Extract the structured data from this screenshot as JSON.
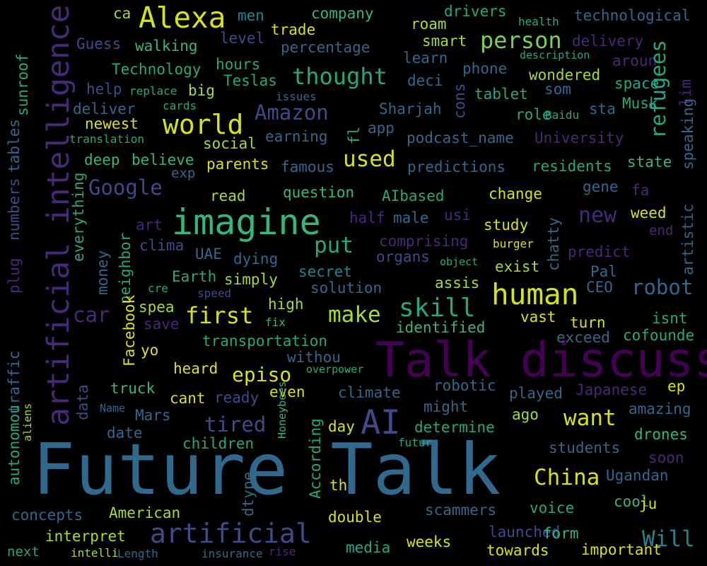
{
  "words": [
    {
      "text": "Future Talk",
      "color": "#31688e"
    },
    {
      "text": "Talk discuss",
      "color": "#440154"
    },
    {
      "text": "artificial intelligence",
      "color": "#482878"
    },
    {
      "text": "imagine",
      "color": "#35b779"
    },
    {
      "text": "Alexa",
      "color": "#d6e21a"
    },
    {
      "text": "AI",
      "color": "#3e4a89"
    },
    {
      "text": "artificial",
      "color": "#3e4a89"
    },
    {
      "text": "human",
      "color": "#d6e21a"
    },
    {
      "text": "world",
      "color": "#d6e21a"
    },
    {
      "text": "skill",
      "color": "#26a784"
    },
    {
      "text": "first",
      "color": "#d6e21a"
    },
    {
      "text": "thought",
      "color": "#26a784"
    },
    {
      "text": "person",
      "color": "#7ad151"
    },
    {
      "text": "Amazon",
      "color": "#3e4a89"
    },
    {
      "text": "Google",
      "color": "#3e4a89"
    },
    {
      "text": "make",
      "color": "#a5db36"
    },
    {
      "text": "put",
      "color": "#26a784"
    },
    {
      "text": "used",
      "color": "#d6e21a"
    },
    {
      "text": "robot",
      "color": "#31688e"
    },
    {
      "text": "car",
      "color": "#482878"
    },
    {
      "text": "episo",
      "color": "#d6e21a"
    },
    {
      "text": "tired",
      "color": "#3e4a89"
    },
    {
      "text": "want",
      "color": "#d6e21a"
    },
    {
      "text": "China",
      "color": "#d6e21a"
    },
    {
      "text": "Will",
      "color": "#26828e"
    },
    {
      "text": "new",
      "color": "#482878"
    },
    {
      "text": "company",
      "color": "#35b779"
    },
    {
      "text": "technological",
      "color": "#31688e"
    },
    {
      "text": "Guess",
      "color": "#3e4a89"
    },
    {
      "text": "walking",
      "color": "#35b779"
    },
    {
      "text": "level",
      "color": "#3e4a89"
    },
    {
      "text": "trade",
      "color": "#d6e21a"
    },
    {
      "text": "percentage",
      "color": "#31688e"
    },
    {
      "text": "roam",
      "color": "#a5db36"
    },
    {
      "text": "smart",
      "color": "#a5db36"
    },
    {
      "text": "delivery",
      "color": "#482878"
    },
    {
      "text": "men",
      "color": "#26828e"
    },
    {
      "text": "ca",
      "color": "#a5db36"
    },
    {
      "text": "drivers",
      "color": "#26a784"
    },
    {
      "text": "health",
      "color": "#26a784"
    },
    {
      "text": "description",
      "color": "#26a784"
    },
    {
      "text": "Technology",
      "color": "#26a784"
    },
    {
      "text": "hours",
      "color": "#26a784"
    },
    {
      "text": "learn",
      "color": "#31688e"
    },
    {
      "text": "phone",
      "color": "#31688e"
    },
    {
      "text": "aroun",
      "color": "#482878"
    },
    {
      "text": "wondered",
      "color": "#a5db36"
    },
    {
      "text": "help",
      "color": "#3e4a89"
    },
    {
      "text": "replace",
      "color": "#26a784"
    },
    {
      "text": "big",
      "color": "#a5db36"
    },
    {
      "text": "Teslas",
      "color": "#26a784"
    },
    {
      "text": "deci",
      "color": "#31688e"
    },
    {
      "text": "tablet",
      "color": "#26a784"
    },
    {
      "text": "som",
      "color": "#31688e"
    },
    {
      "text": "space",
      "color": "#26a784"
    },
    {
      "text": "issues",
      "color": "#31688e"
    },
    {
      "text": "cards",
      "color": "#26a784"
    },
    {
      "text": "deliver",
      "color": "#31688e"
    },
    {
      "text": "Sharjah",
      "color": "#31688e"
    },
    {
      "text": "role",
      "color": "#26a784"
    },
    {
      "text": "Baidu",
      "color": "#26a784"
    },
    {
      "text": "sta",
      "color": "#31688e"
    },
    {
      "text": "Musk",
      "color": "#26a784"
    },
    {
      "text": "newest",
      "color": "#d6e21a"
    },
    {
      "text": "translation",
      "color": "#26a784"
    },
    {
      "text": "earning",
      "color": "#31688e"
    },
    {
      "text": "app",
      "color": "#31688e"
    },
    {
      "text": "podcast_name",
      "color": "#31688e"
    },
    {
      "text": "University",
      "color": "#482878"
    },
    {
      "text": "social",
      "color": "#a5db36"
    },
    {
      "text": "deep",
      "color": "#35b779"
    },
    {
      "text": "believe",
      "color": "#35b779"
    },
    {
      "text": "parents",
      "color": "#d6e21a"
    },
    {
      "text": "famous",
      "color": "#31688e"
    },
    {
      "text": "predictions",
      "color": "#31688e"
    },
    {
      "text": "residents",
      "color": "#26a784"
    },
    {
      "text": "state",
      "color": "#35b779"
    },
    {
      "text": "exp",
      "color": "#31688e"
    },
    {
      "text": "read",
      "color": "#a5db36"
    },
    {
      "text": "question",
      "color": "#35b779"
    },
    {
      "text": "AIbased",
      "color": "#26a784"
    },
    {
      "text": "change",
      "color": "#d6e21a"
    },
    {
      "text": "gene",
      "color": "#31688e"
    },
    {
      "text": "fa",
      "color": "#482878"
    },
    {
      "text": "half",
      "color": "#482878"
    },
    {
      "text": "male",
      "color": "#31688e"
    },
    {
      "text": "usi",
      "color": "#482878"
    },
    {
      "text": "study",
      "color": "#d6e21a"
    },
    {
      "text": "weed",
      "color": "#d6e21a"
    },
    {
      "text": "end",
      "color": "#482878"
    },
    {
      "text": "art",
      "color": "#482878"
    },
    {
      "text": "clima",
      "color": "#3e4a89"
    },
    {
      "text": "UAE",
      "color": "#31688e"
    },
    {
      "text": "dying",
      "color": "#31688e"
    },
    {
      "text": "comprising",
      "color": "#482878"
    },
    {
      "text": "organs",
      "color": "#3e4a89"
    },
    {
      "text": "burger",
      "color": "#d6e21a"
    },
    {
      "text": "object",
      "color": "#26a784"
    },
    {
      "text": "predict",
      "color": "#482878"
    },
    {
      "text": "Earth",
      "color": "#26a784"
    },
    {
      "text": "simply",
      "color": "#a5db36"
    },
    {
      "text": "secret",
      "color": "#26828e"
    },
    {
      "text": "exist",
      "color": "#a5db36"
    },
    {
      "text": "Pal",
      "color": "#31688e"
    },
    {
      "text": "cre",
      "color": "#26a784"
    },
    {
      "text": "speed",
      "color": "#3e4a89"
    },
    {
      "text": "solution",
      "color": "#31688e"
    },
    {
      "text": "assis",
      "color": "#a5db36"
    },
    {
      "text": "CEO",
      "color": "#31688e"
    },
    {
      "text": "spea",
      "color": "#a5db36"
    },
    {
      "text": "high",
      "color": "#a5db36"
    },
    {
      "text": "vast",
      "color": "#d6e21a"
    },
    {
      "text": "isnt",
      "color": "#26a784"
    },
    {
      "text": "save",
      "color": "#482878"
    },
    {
      "text": "fix",
      "color": "#35b779"
    },
    {
      "text": "identified",
      "color": "#35b779"
    },
    {
      "text": "turn",
      "color": "#d6e21a"
    },
    {
      "text": "exceed",
      "color": "#31688e"
    },
    {
      "text": "cofounde",
      "color": "#26a784"
    },
    {
      "text": "yo",
      "color": "#d6e21a"
    },
    {
      "text": "transportation",
      "color": "#26a784"
    },
    {
      "text": "withou",
      "color": "#31688e"
    },
    {
      "text": "heard",
      "color": "#d6e21a"
    },
    {
      "text": "overpower",
      "color": "#26a784"
    },
    {
      "text": "ep",
      "color": "#d6e21a"
    },
    {
      "text": "truck",
      "color": "#35b779"
    },
    {
      "text": "even",
      "color": "#d6e21a"
    },
    {
      "text": "climate",
      "color": "#31688e"
    },
    {
      "text": "robotic",
      "color": "#31688e"
    },
    {
      "text": "played",
      "color": "#31688e"
    },
    {
      "text": "Japanese",
      "color": "#482878"
    },
    {
      "text": "cant",
      "color": "#d6e21a"
    },
    {
      "text": "ready",
      "color": "#3e4a89"
    },
    {
      "text": "might",
      "color": "#31688e"
    },
    {
      "text": "amazing",
      "color": "#31688e"
    },
    {
      "text": "Name",
      "color": "#31688e"
    },
    {
      "text": "Mars",
      "color": "#31688e"
    },
    {
      "text": "day",
      "color": "#d6e21a"
    },
    {
      "text": "determine",
      "color": "#26a784"
    },
    {
      "text": "ago",
      "color": "#a5db36"
    },
    {
      "text": "drones",
      "color": "#35b779"
    },
    {
      "text": "date",
      "color": "#31688e"
    },
    {
      "text": "children",
      "color": "#26a784"
    },
    {
      "text": "futur",
      "color": "#26a784"
    },
    {
      "text": "students",
      "color": "#31688e"
    },
    {
      "text": "soon",
      "color": "#482878"
    },
    {
      "text": "Ugandan",
      "color": "#31688e"
    },
    {
      "text": "th",
      "color": "#d6e21a"
    },
    {
      "text": "cool",
      "color": "#35b779"
    },
    {
      "text": "ju",
      "color": "#d6e21a"
    },
    {
      "text": "voice",
      "color": "#26a784"
    },
    {
      "text": "scammers",
      "color": "#31688e"
    },
    {
      "text": "concepts",
      "color": "#31688e"
    },
    {
      "text": "American",
      "color": "#a5db36"
    },
    {
      "text": "double",
      "color": "#d6e21a"
    },
    {
      "text": "interpret",
      "color": "#a5db36"
    },
    {
      "text": "launched",
      "color": "#3e4a89"
    },
    {
      "text": "form",
      "color": "#35b779"
    },
    {
      "text": "important",
      "color": "#d6e21a"
    },
    {
      "text": "next",
      "color": "#26a784"
    },
    {
      "text": "intelli",
      "color": "#a5db36"
    },
    {
      "text": "Length",
      "color": "#31688e"
    },
    {
      "text": "insurance",
      "color": "#31688e"
    },
    {
      "text": "rise",
      "color": "#482878"
    },
    {
      "text": "media",
      "color": "#26a784"
    },
    {
      "text": "weeks",
      "color": "#d6e21a"
    },
    {
      "text": "towards",
      "color": "#d6e21a"
    },
    {
      "text": "sunroof",
      "color": "#26a784"
    },
    {
      "text": "numbers",
      "color": "#3e4a89"
    },
    {
      "text": "tables",
      "color": "#31688e"
    },
    {
      "text": "plug",
      "color": "#482878"
    },
    {
      "text": "traffic",
      "color": "#31688e"
    },
    {
      "text": "autonomou",
      "color": "#26a784"
    },
    {
      "text": "aliens",
      "color": "#a5db36"
    },
    {
      "text": "everything",
      "color": "#26a784"
    },
    {
      "text": "money",
      "color": "#31688e"
    },
    {
      "text": "neighbor",
      "color": "#26a784"
    },
    {
      "text": "Facebook",
      "color": "#d6e21a"
    },
    {
      "text": "data",
      "color": "#3e4a89"
    },
    {
      "text": "refugees",
      "color": "#26a784"
    },
    {
      "text": "fl",
      "color": "#26a784"
    },
    {
      "text": "cons",
      "color": "#3e4a89"
    },
    {
      "text": "lim",
      "color": "#482878"
    },
    {
      "text": "speaking",
      "color": "#31688e"
    },
    {
      "text": "chatty",
      "color": "#31688e"
    },
    {
      "text": "artistic",
      "color": "#31688e"
    },
    {
      "text": "According",
      "color": "#26a784"
    },
    {
      "text": "Honeybees",
      "color": "#35b779"
    },
    {
      "text": "dtype",
      "color": "#31688e"
    }
  ]
}
